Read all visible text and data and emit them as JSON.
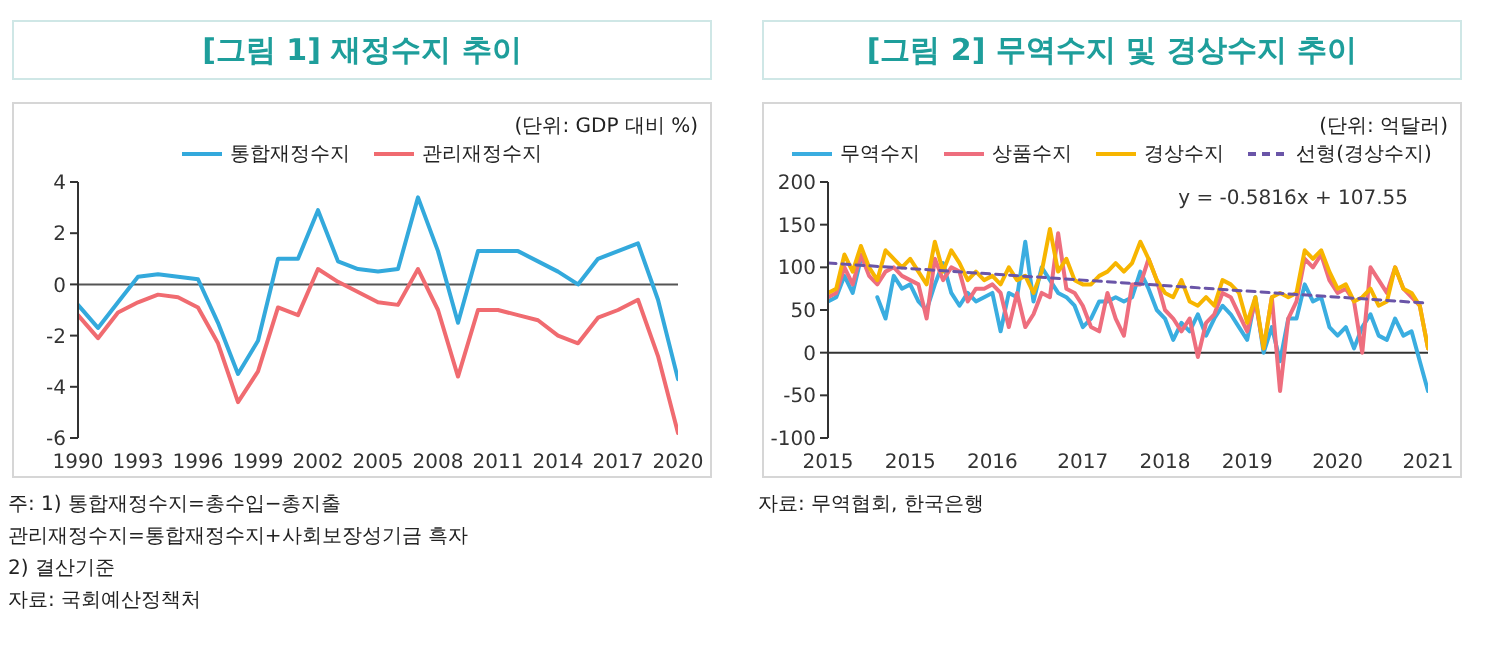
{
  "chart_data": [
    {
      "type": "line",
      "title": "[그림 1] 재정수지 추이",
      "x": [
        1990,
        1991,
        1992,
        1993,
        1994,
        1995,
        1996,
        1997,
        1998,
        1999,
        2000,
        2001,
        2002,
        2003,
        2004,
        2005,
        2006,
        2007,
        2008,
        2009,
        2010,
        2011,
        2012,
        2013,
        2014,
        2015,
        2016,
        2017,
        2018,
        2019,
        2020
      ],
      "series": [
        {
          "name": "통합재정수지",
          "color": "#33a9dc",
          "values": [
            -0.8,
            -1.7,
            -0.7,
            0.3,
            0.4,
            0.3,
            0.2,
            -1.5,
            -3.5,
            -2.2,
            1.0,
            1.0,
            2.9,
            0.9,
            0.6,
            0.5,
            0.6,
            3.4,
            1.3,
            -1.5,
            1.3,
            1.3,
            1.3,
            0.9,
            0.5,
            0.0,
            1.0,
            1.3,
            1.6,
            -0.6,
            -3.7
          ]
        },
        {
          "name": "관리재정수지",
          "color": "#f06b70",
          "values": [
            -1.2,
            -2.1,
            -1.1,
            -0.7,
            -0.4,
            -0.5,
            -0.9,
            -2.3,
            -4.6,
            -3.4,
            -0.9,
            -1.2,
            0.6,
            0.1,
            -0.3,
            -0.7,
            -0.8,
            0.6,
            -1.0,
            -3.6,
            -1.0,
            -1.0,
            -1.2,
            -1.4,
            -2.0,
            -2.3,
            -1.3,
            -1.0,
            -0.6,
            -2.8,
            -5.8
          ]
        }
      ],
      "xlim": [
        1990,
        2020
      ],
      "xticks": [
        1990,
        1993,
        1996,
        1999,
        2002,
        2005,
        2008,
        2011,
        2014,
        2017,
        2020
      ],
      "ylim": [
        -6,
        4
      ],
      "yticks": [
        -6,
        -4,
        -2,
        0,
        2,
        4
      ],
      "ref_lines": [
        {
          "axis": "y",
          "value": 0,
          "color": "#555555"
        }
      ],
      "grid": false,
      "legend": "top",
      "marker": "none",
      "annotations": [
        "(단위: GDP 대비 %)",
        "주: 1) 통합재정수지=총수입−총지출",
        "관리재정수지=통합재정수지+사회보장성기금 흑자",
        "2) 결산기준",
        "자료: 국회예산정책처"
      ]
    },
    {
      "type": "line",
      "title": "[그림 2] 무역수지 및 경상수지 추이",
      "x": [
        "2015-01",
        "2015-02",
        "2015-03",
        "2015-04",
        "2015-05",
        "2015-06",
        "2015-07",
        "2015-08",
        "2015-09",
        "2015-10",
        "2015-11",
        "2015-12",
        "2016-01",
        "2016-02",
        "2016-03",
        "2016-04",
        "2016-05",
        "2016-06",
        "2016-07",
        "2016-08",
        "2016-09",
        "2016-10",
        "2016-11",
        "2016-12",
        "2017-01",
        "2017-02",
        "2017-03",
        "2017-04",
        "2017-05",
        "2017-06",
        "2017-07",
        "2017-08",
        "2017-09",
        "2017-10",
        "2017-11",
        "2017-12",
        "2018-01",
        "2018-02",
        "2018-03",
        "2018-04",
        "2018-05",
        "2018-06",
        "2018-07",
        "2018-08",
        "2018-09",
        "2018-10",
        "2018-11",
        "2018-12",
        "2019-01",
        "2019-02",
        "2019-03",
        "2019-04",
        "2019-05",
        "2019-06",
        "2019-07",
        "2019-08",
        "2019-09",
        "2019-10",
        "2019-11",
        "2019-12",
        "2020-01",
        "2020-02",
        "2020-03",
        "2020-04",
        "2020-05",
        "2020-06",
        "2020-07",
        "2020-08",
        "2020-09",
        "2020-10",
        "2020-11",
        "2020-12",
        "2021-01",
        "2021-02"
      ],
      "series": [
        {
          "name": "무역수지",
          "color": "#3aade0",
          "values": [
            60,
            65,
            90,
            70,
            110,
            null,
            65,
            40,
            90,
            75,
            80,
            60,
            50,
            80,
            105,
            70,
            55,
            70,
            60,
            65,
            70,
            25,
            70,
            65,
            130,
            60,
            100,
            85,
            70,
            65,
            55,
            30,
            40,
            60,
            60,
            65,
            60,
            65,
            95,
            75,
            50,
            40,
            15,
            35,
            25,
            45,
            20,
            40,
            55,
            45,
            30,
            15,
            65,
            0,
            30,
            -10,
            40,
            40,
            80,
            60,
            65,
            30,
            20,
            30,
            5,
            30,
            45,
            20,
            15,
            40,
            20,
            25,
            -10,
            -45
          ]
        },
        {
          "name": "상품수지",
          "color": "#ee6e7e",
          "values": [
            65,
            70,
            100,
            80,
            115,
            90,
            80,
            95,
            100,
            90,
            85,
            80,
            40,
            110,
            85,
            100,
            95,
            60,
            75,
            75,
            80,
            70,
            30,
            70,
            30,
            45,
            70,
            65,
            140,
            75,
            70,
            55,
            30,
            25,
            70,
            40,
            20,
            80,
            80,
            110,
            85,
            50,
            40,
            25,
            40,
            -5,
            35,
            45,
            70,
            65,
            45,
            25,
            60,
            5,
            65,
            -45,
            40,
            60,
            110,
            100,
            115,
            85,
            70,
            75,
            60,
            0,
            100,
            85,
            70,
            100,
            75,
            65,
            55,
            5
          ]
        },
        {
          "name": "경상수지",
          "color": "#f7b500",
          "values": [
            70,
            75,
            115,
            95,
            125,
            100,
            85,
            120,
            110,
            100,
            110,
            95,
            80,
            130,
            95,
            120,
            105,
            85,
            95,
            85,
            90,
            80,
            100,
            85,
            90,
            70,
            95,
            145,
            95,
            110,
            85,
            80,
            80,
            90,
            95,
            105,
            95,
            105,
            130,
            110,
            85,
            70,
            65,
            85,
            60,
            55,
            65,
            55,
            85,
            80,
            70,
            35,
            65,
            5,
            65,
            70,
            65,
            70,
            120,
            110,
            120,
            95,
            75,
            80,
            60,
            65,
            75,
            55,
            60,
            100,
            75,
            70,
            55,
            5
          ]
        },
        {
          "name": "선형(경상수지)",
          "type": "line",
          "color": "#6a55a8",
          "line_style": "dashed",
          "x": [
            "2015-01",
            "2021-02"
          ],
          "values": [
            105,
            58
          ]
        }
      ],
      "xlim": [
        "2015-01",
        "2021-02"
      ],
      "xticks": [
        {
          "value": "2015-01",
          "label": "2015"
        },
        {
          "value": "2015-11",
          "label": "2015"
        },
        {
          "value": "2016-09",
          "label": "2016"
        },
        {
          "value": "2017-08",
          "label": "2017"
        },
        {
          "value": "2018-06",
          "label": "2018"
        },
        {
          "value": "2019-04",
          "label": "2019"
        },
        {
          "value": "2020-03",
          "label": "2020"
        },
        {
          "value": "2021-02",
          "label": "2021"
        }
      ],
      "ylim": [
        -100,
        200
      ],
      "yticks": [
        -100,
        -50,
        0,
        50,
        100,
        150,
        200
      ],
      "ref_lines": [
        {
          "axis": "y",
          "value": 0,
          "color": "#333333"
        }
      ],
      "grid": false,
      "legend": "top",
      "marker": "none",
      "annotations": [
        "(단위: 억달러)",
        "y = -0.5816x + 107.55",
        "자료: 무역협회, 한국은행"
      ]
    }
  ]
}
